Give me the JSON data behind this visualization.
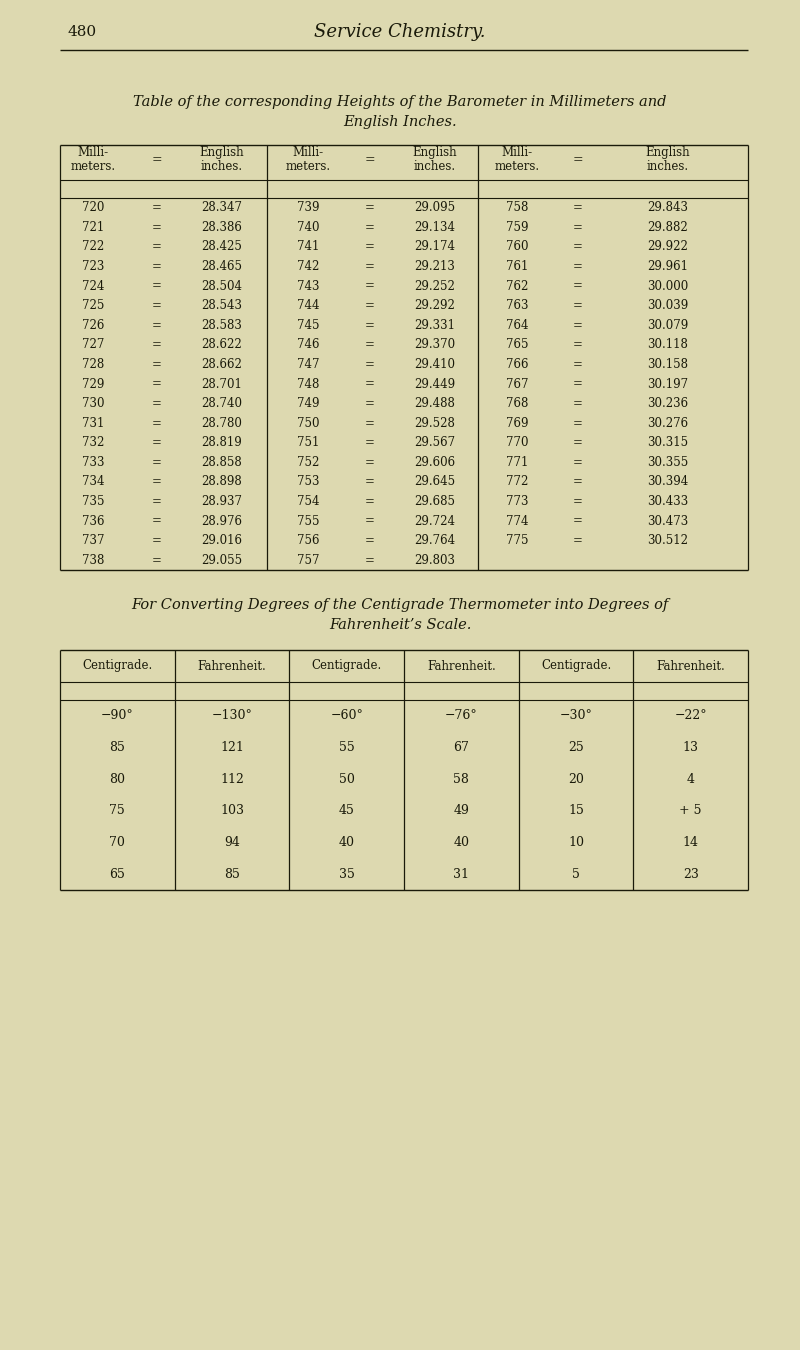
{
  "bg_color": "#ddd9b0",
  "page_num": "480",
  "page_title": "Service Chemistry.",
  "table1_title_line1": "Table of the corresponding Heights of the Barometer in Millimeters and",
  "table1_title_line2": "English Inches.",
  "table1_data_col1": [
    [
      "720",
      "28.347"
    ],
    [
      "721",
      "28.386"
    ],
    [
      "722",
      "28.425"
    ],
    [
      "723",
      "28.465"
    ],
    [
      "724",
      "28.504"
    ],
    [
      "725",
      "28.543"
    ],
    [
      "726",
      "28.583"
    ],
    [
      "727",
      "28.622"
    ],
    [
      "728",
      "28.662"
    ],
    [
      "729",
      "28.701"
    ],
    [
      "730",
      "28.740"
    ],
    [
      "731",
      "28.780"
    ],
    [
      "732",
      "28.819"
    ],
    [
      "733",
      "28.858"
    ],
    [
      "734",
      "28.898"
    ],
    [
      "735",
      "28.937"
    ],
    [
      "736",
      "28.976"
    ],
    [
      "737",
      "29.016"
    ],
    [
      "738",
      "29.055"
    ]
  ],
  "table1_data_col2": [
    [
      "739",
      "29.095"
    ],
    [
      "740",
      "29.134"
    ],
    [
      "741",
      "29.174"
    ],
    [
      "742",
      "29.213"
    ],
    [
      "743",
      "29.252"
    ],
    [
      "744",
      "29.292"
    ],
    [
      "745",
      "29.331"
    ],
    [
      "746",
      "29.370"
    ],
    [
      "747",
      "29.410"
    ],
    [
      "748",
      "29.449"
    ],
    [
      "749",
      "29.488"
    ],
    [
      "750",
      "29.528"
    ],
    [
      "751",
      "29.567"
    ],
    [
      "752",
      "29.606"
    ],
    [
      "753",
      "29.645"
    ],
    [
      "754",
      "29.685"
    ],
    [
      "755",
      "29.724"
    ],
    [
      "756",
      "29.764"
    ],
    [
      "757",
      "29.803"
    ]
  ],
  "table1_data_col3": [
    [
      "758",
      "29.843"
    ],
    [
      "759",
      "29.882"
    ],
    [
      "760",
      "29.922"
    ],
    [
      "761",
      "29.961"
    ],
    [
      "762",
      "30.000"
    ],
    [
      "763",
      "30.039"
    ],
    [
      "764",
      "30.079"
    ],
    [
      "765",
      "30.118"
    ],
    [
      "766",
      "30.158"
    ],
    [
      "767",
      "30.197"
    ],
    [
      "768",
      "30.236"
    ],
    [
      "769",
      "30.276"
    ],
    [
      "770",
      "30.315"
    ],
    [
      "771",
      "30.355"
    ],
    [
      "772",
      "30.394"
    ],
    [
      "773",
      "30.433"
    ],
    [
      "774",
      "30.473"
    ],
    [
      "775",
      "30.512"
    ],
    [
      "",
      ""
    ]
  ],
  "table2_title_line1": "For Converting Degrees of the Centigrade Thermometer into Degrees of",
  "table2_title_line2": "Fahrenheit’s Scale.",
  "table2_col_headers": [
    "Centigrade.",
    "Fahrenheit.",
    "Centigrade.",
    "Fahrenheit.",
    "Centigrade.",
    "Fahrenheit."
  ],
  "table2_data": [
    [
      "−90°",
      "−130°",
      "−60°",
      "−76°",
      "−30°",
      "−22°"
    ],
    [
      "85",
      "121",
      "55",
      "67",
      "25",
      "13"
    ],
    [
      "80",
      "112",
      "50",
      "58",
      "20",
      "4"
    ],
    [
      "75",
      "103",
      "45",
      "49",
      "15",
      "+ 5"
    ],
    [
      "70",
      "94",
      "40",
      "40",
      "10",
      "14"
    ],
    [
      "65",
      "85",
      "35",
      "31",
      "5",
      "23"
    ]
  ],
  "text_color": "#1a1a0a",
  "line_color": "#1a1a0a"
}
